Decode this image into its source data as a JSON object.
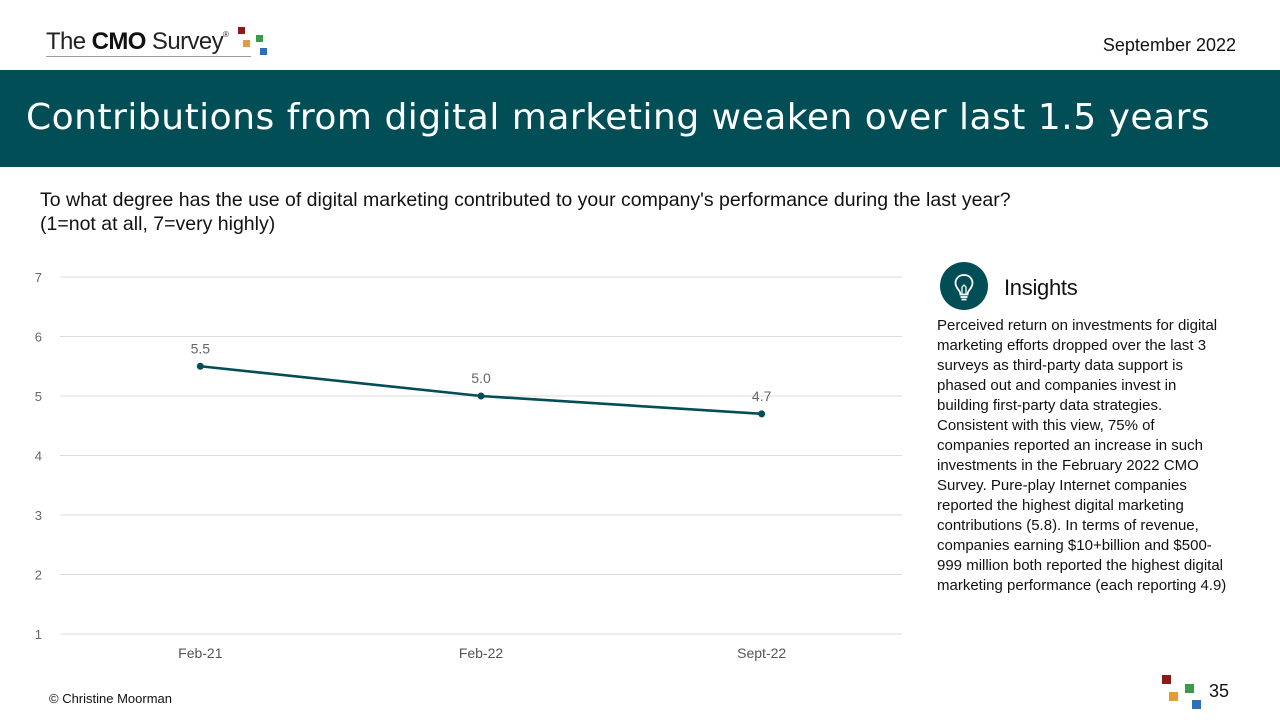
{
  "header": {
    "logo": {
      "prefix": "The",
      "brand": "CMO",
      "suffix": "Survey",
      "reg": "®"
    },
    "date": "September 2022"
  },
  "banner": {
    "title": "Contributions from digital marketing weaken over last 1.5 years"
  },
  "question": {
    "line1": "To what degree has the use of digital marketing contributed to your company's performance during the last year?",
    "line2": "(1=not at all, 7=very highly)"
  },
  "chart_data": {
    "type": "line",
    "categories": [
      "Feb-21",
      "Feb-22",
      "Sept-22"
    ],
    "series": [
      {
        "values": [
          5.5,
          5.0,
          4.7
        ],
        "color": "#024e57"
      }
    ],
    "data_labels": [
      "5.5",
      "5.0",
      "4.7"
    ],
    "ylim": [
      1,
      7
    ],
    "yticks": [
      1,
      2,
      3,
      4,
      5,
      6,
      7
    ],
    "grid": true,
    "title": "",
    "xlabel": "",
    "ylabel": ""
  },
  "insights": {
    "title": "Insights",
    "icon": "lightbulb-icon",
    "body": "Perceived return on investments for digital marketing efforts dropped over the last 3 surveys as third-party data support is phased out and companies invest in building first-party data strategies. Consistent with this view, 75% of companies reported an increase in such investments in the February 2022 CMO Survey. Pure-play Internet companies reported the highest digital marketing contributions (5.8). In terms of revenue, companies earning $10+billion and $500-999 million both reported the highest digital marketing performance (each reporting 4.9)"
  },
  "footer": {
    "copyright": "© Christine Moorman",
    "page": "35"
  },
  "colors": {
    "brand_teal": "#024e57",
    "sq_red": "#8b1a1a",
    "sq_orange": "#e69a3c",
    "sq_green": "#3a9a4a",
    "sq_blue": "#2f6fb5"
  }
}
